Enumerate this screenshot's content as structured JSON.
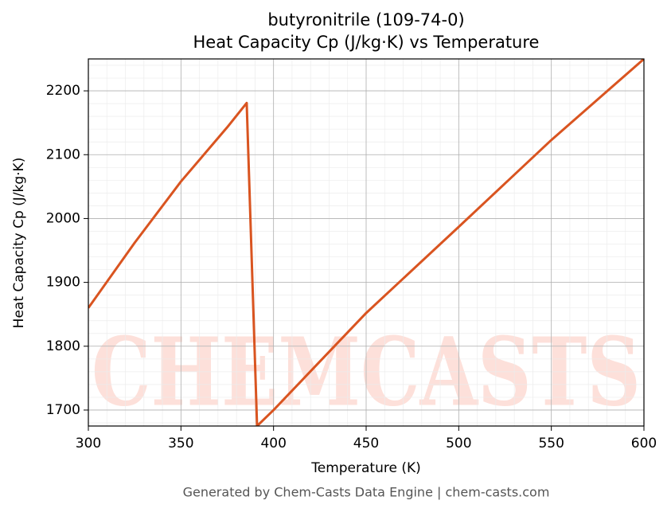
{
  "chart_data": {
    "type": "line",
    "title": "butyronitrile (109-74-0)",
    "subtitle": "Heat Capacity Cp (J/kg·K) vs Temperature",
    "x_label": "Temperature (K)",
    "y_label": "Heat Capacity Cp (J/kg·K)",
    "watermark": "CHEMCASTS",
    "footer": "Generated by Chem-Casts Data Engine | chem-casts.com",
    "x": [
      300,
      325,
      350,
      375,
      385.5,
      391.1,
      400,
      450,
      500,
      550,
      600
    ],
    "series": [
      {
        "name": "Heat Capacity Cp",
        "color": "#d95420",
        "values": [
          1860,
          1962,
          2058,
          2143,
          2181,
          1675,
          1700,
          1852,
          1987,
          2123,
          2250
        ]
      }
    ],
    "xlim": [
      300,
      600
    ],
    "xticks": [
      300,
      350,
      400,
      450,
      500,
      550,
      600
    ],
    "ylim": [
      1675,
      2250
    ],
    "yticks": [
      1700,
      1800,
      1900,
      2000,
      2100,
      2200
    ],
    "grid": true
  }
}
